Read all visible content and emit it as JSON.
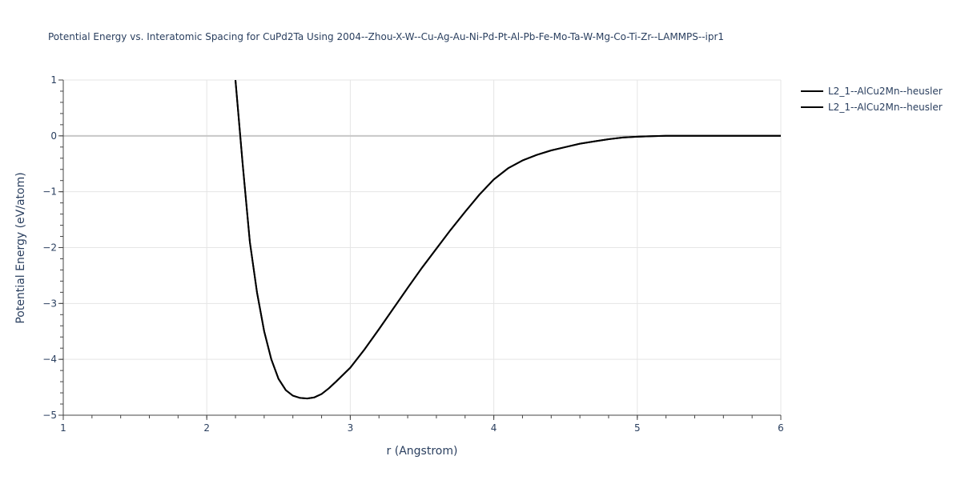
{
  "chart_data": {
    "type": "line",
    "title": "Potential Energy vs. Interatomic Spacing for CuPd2Ta Using 2004--Zhou-X-W--Cu-Ag-Au-Ni-Pd-Pt-Al-Pb-Fe-Mo-Ta-W-Mg-Co-Ti-Zr--LAMMPS--ipr1",
    "xlabel": "r (Angstrom)",
    "ylabel": "Potential Energy (eV/atom)",
    "xlim": [
      1,
      6
    ],
    "ylim": [
      -5,
      1
    ],
    "xticks": [
      1,
      2,
      3,
      4,
      5,
      6
    ],
    "xtick_labels": [
      "1",
      "2",
      "3",
      "4",
      "5",
      "6"
    ],
    "yticks": [
      -5,
      -4,
      -3,
      -2,
      -1,
      0,
      1
    ],
    "ytick_labels": [
      "−5",
      "−4",
      "−3",
      "−2",
      "−1",
      "0",
      "1"
    ],
    "grid": true,
    "legend_position": "top-right",
    "series": [
      {
        "name": "L2_1--AlCu2Mn--heusler",
        "color": "#000000",
        "x": [
          2.2,
          2.25,
          2.3,
          2.35,
          2.4,
          2.45,
          2.5,
          2.55,
          2.6,
          2.65,
          2.7,
          2.75,
          2.8,
          2.85,
          2.9,
          3.0,
          3.1,
          3.2,
          3.3,
          3.4,
          3.5,
          3.6,
          3.7,
          3.8,
          3.9,
          4.0,
          4.1,
          4.2,
          4.3,
          4.4,
          4.5,
          4.6,
          4.7,
          4.8,
          4.9,
          5.0,
          5.1,
          5.2,
          5.5,
          6.0
        ],
        "y": [
          1.0,
          -0.5,
          -1.9,
          -2.8,
          -3.5,
          -4.0,
          -4.35,
          -4.55,
          -4.65,
          -4.69,
          -4.7,
          -4.68,
          -4.62,
          -4.52,
          -4.4,
          -4.15,
          -3.82,
          -3.46,
          -3.09,
          -2.72,
          -2.36,
          -2.02,
          -1.68,
          -1.36,
          -1.05,
          -0.78,
          -0.58,
          -0.44,
          -0.34,
          -0.26,
          -0.2,
          -0.14,
          -0.1,
          -0.06,
          -0.03,
          -0.015,
          -0.006,
          0.0,
          0.0,
          0.0
        ]
      },
      {
        "name": "L2_1--AlCu2Mn--heusler",
        "color": "#000000",
        "x": [
          2.2,
          2.25,
          2.3,
          2.35,
          2.4,
          2.45,
          2.5,
          2.55,
          2.6,
          2.65,
          2.7,
          2.75,
          2.8,
          2.85,
          2.9,
          3.0,
          3.1,
          3.2,
          3.3,
          3.4,
          3.5,
          3.6,
          3.7,
          3.8,
          3.9,
          4.0,
          4.1,
          4.2,
          4.3,
          4.4,
          4.5,
          4.6,
          4.7,
          4.8,
          4.9,
          5.0,
          5.1,
          5.2,
          5.5,
          6.0
        ],
        "y": [
          1.0,
          -0.5,
          -1.9,
          -2.8,
          -3.5,
          -4.0,
          -4.35,
          -4.55,
          -4.65,
          -4.69,
          -4.7,
          -4.68,
          -4.62,
          -4.52,
          -4.4,
          -4.15,
          -3.82,
          -3.46,
          -3.09,
          -2.72,
          -2.36,
          -2.02,
          -1.68,
          -1.36,
          -1.05,
          -0.78,
          -0.58,
          -0.44,
          -0.34,
          -0.26,
          -0.2,
          -0.14,
          -0.1,
          -0.06,
          -0.03,
          -0.015,
          -0.006,
          0.0,
          0.0,
          0.0
        ]
      }
    ]
  }
}
